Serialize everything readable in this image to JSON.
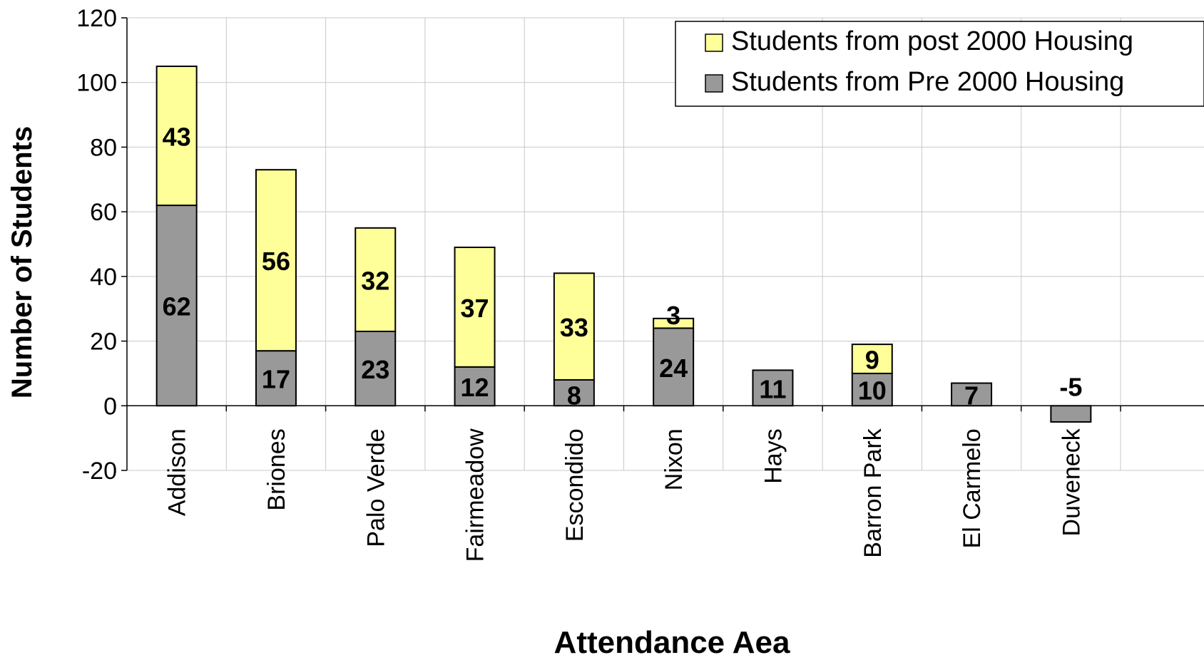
{
  "chart_data": {
    "type": "bar",
    "stacked": true,
    "xlabel": "Attendance Aea",
    "ylabel": "Number of Students",
    "ylim": [
      -20,
      120
    ],
    "yticks": [
      -20,
      0,
      20,
      40,
      60,
      80,
      100,
      120
    ],
    "grid": true,
    "legend_position": "top-right",
    "categories": [
      "Addison",
      "Briones",
      "Palo Verde",
      "Fairmeadow",
      "Escondido",
      "Nixon",
      "Hays",
      "Barron Park",
      "El Carmelo",
      "Duveneck"
    ],
    "series": [
      {
        "name": "Students from Pre 2000 Housing",
        "color": "#999999",
        "values": [
          62,
          17,
          23,
          12,
          8,
          24,
          11,
          10,
          7,
          -5
        ],
        "labels": [
          "62",
          "17",
          "23",
          "12",
          "8",
          "24",
          "11",
          "10",
          "7",
          "-5"
        ]
      },
      {
        "name": "Students from post 2000 Housing",
        "color": "#FFFF99",
        "values": [
          43,
          56,
          32,
          37,
          33,
          3,
          0,
          9,
          0,
          0
        ],
        "labels": [
          "43",
          "56",
          "32",
          "37",
          "33",
          "3",
          "",
          "9",
          "",
          ""
        ]
      }
    ],
    "legend_order": [
      1,
      0
    ]
  }
}
